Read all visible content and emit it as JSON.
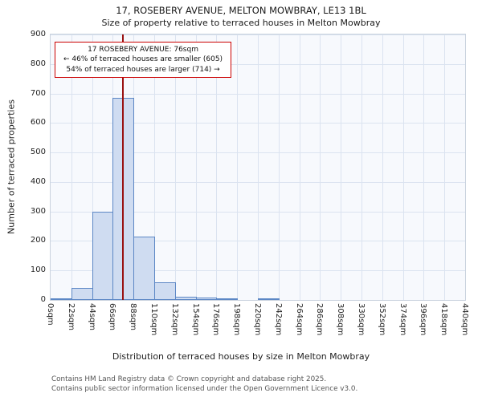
{
  "header": {
    "title": "17, ROSEBERY AVENUE, MELTON MOWBRAY, LE13 1BL",
    "subtitle": "Size of property relative to terraced houses in Melton Mowbray"
  },
  "chart_data": {
    "type": "bar",
    "title": "17, ROSEBERY AVENUE, MELTON MOWBRAY, LE13 1BL",
    "subtitle": "Size of property relative to terraced houses in Melton Mowbray",
    "xlabel": "Distribution of terraced houses by size in Melton Mowbray",
    "ylabel": "Number of terraced properties",
    "bin_width_sqm": 22,
    "x_max_sqm": 440,
    "xtick_labels": [
      "0sqm",
      "22sqm",
      "44sqm",
      "66sqm",
      "88sqm",
      "110sqm",
      "132sqm",
      "154sqm",
      "176sqm",
      "198sqm",
      "220sqm",
      "242sqm",
      "264sqm",
      "286sqm",
      "308sqm",
      "330sqm",
      "352sqm",
      "374sqm",
      "396sqm",
      "418sqm",
      "440sqm"
    ],
    "values": [
      5,
      40,
      300,
      685,
      215,
      60,
      12,
      8,
      5,
      0,
      5,
      0,
      0,
      0,
      0,
      0,
      0,
      0,
      0,
      0
    ],
    "ylim": [
      0,
      900
    ],
    "yticks": [
      0,
      100,
      200,
      300,
      400,
      500,
      600,
      700,
      800,
      900
    ],
    "grid": true,
    "marker": {
      "value_sqm": 76,
      "color": "#991111"
    },
    "annotation": {
      "line1": "17 ROSEBERY AVENUE: 76sqm",
      "line2": "← 46% of terraced houses are smaller (605)",
      "line3": "54% of terraced houses are larger (714) →"
    },
    "colors": {
      "bar_fill": "#cfdcf1",
      "bar_border": "#5c87c5",
      "grid": "#dbe3f0",
      "annotation_border": "#cc0000"
    }
  },
  "footer": {
    "line1": "Contains HM Land Registry data © Crown copyright and database right 2025.",
    "line2": "Contains public sector information licensed under the Open Government Licence v3.0."
  }
}
